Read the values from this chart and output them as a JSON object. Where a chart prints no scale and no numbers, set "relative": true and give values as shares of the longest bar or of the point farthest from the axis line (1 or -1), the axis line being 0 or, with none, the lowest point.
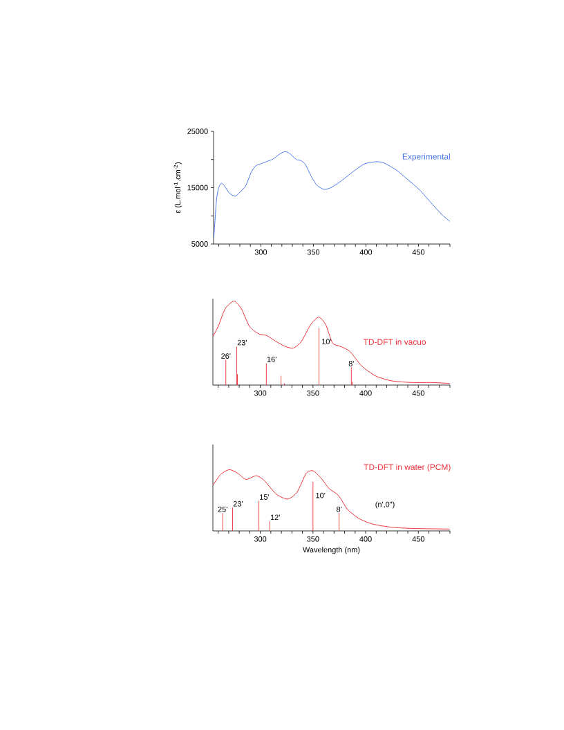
{
  "chart_data": [
    {
      "type": "line",
      "ylabel": "ε (L.mol$^{-1}$.cm$^{-2}$)",
      "xlim": [
        255,
        480
      ],
      "ylim": [
        5000,
        25000
      ],
      "xticks": [
        {
          "value": 260,
          "label": null
        },
        {
          "value": 270,
          "label": null
        },
        {
          "value": 280,
          "label": null
        },
        {
          "value": 290,
          "label": null
        },
        300,
        {
          "value": 310,
          "label": null
        },
        {
          "value": 320,
          "label": null
        },
        {
          "value": 330,
          "label": null
        },
        {
          "value": 340,
          "label": null
        },
        350,
        {
          "value": 360,
          "label": null
        },
        {
          "value": 370,
          "label": null
        },
        {
          "value": 380,
          "label": null
        },
        {
          "value": 390,
          "label": null
        },
        400,
        {
          "value": 410,
          "label": null
        },
        {
          "value": 420,
          "label": null
        },
        {
          "value": 430,
          "label": null
        },
        {
          "value": 440,
          "label": null
        },
        450,
        {
          "value": 460,
          "label": null
        },
        {
          "value": 470,
          "label": null
        },
        {
          "value": 480,
          "label": null
        }
      ],
      "yticks": [
        5000,
        {
          "value": 10000,
          "label": null
        },
        15000,
        {
          "value": 20000,
          "label": null
        },
        25000
      ],
      "series": [
        {
          "name": "Experimental",
          "color": "#4a76e8",
          "x": [
            255.3,
            257.7,
            259.9,
            262.5,
            265.8,
            270.2,
            275.7,
            280,
            285.5,
            291,
            295.4,
            300.9,
            306.4,
            311.8,
            317.3,
            322.8,
            327.2,
            333.8,
            338.2,
            342.5,
            348,
            353.5,
            360.1,
            366.7,
            376.5,
            387.5,
            398.5,
            409.4,
            417.1,
            429.2,
            440.1,
            451.1,
            462.1,
            473,
            480
          ],
          "values": [
            6200,
            12700,
            15000,
            15800,
            15200,
            14000,
            13500,
            14200,
            15300,
            17800,
            18900,
            19300,
            19700,
            20100,
            20900,
            21400,
            21100,
            20000,
            19800,
            19100,
            17000,
            15400,
            14700,
            15000,
            16200,
            17800,
            19200,
            19600,
            19400,
            18100,
            16400,
            14600,
            12300,
            10100,
            9000
          ]
        }
      ]
    },
    {
      "type": "line",
      "relative": true,
      "xlim": [
        255,
        480
      ],
      "xticks": [
        {
          "value": 260,
          "label": null
        },
        {
          "value": 270,
          "label": null
        },
        {
          "value": 280,
          "label": null
        },
        {
          "value": 290,
          "label": null
        },
        300,
        {
          "value": 310,
          "label": null
        },
        {
          "value": 320,
          "label": null
        },
        {
          "value": 330,
          "label": null
        },
        {
          "value": 340,
          "label": null
        },
        350,
        {
          "value": 360,
          "label": null
        },
        {
          "value": 370,
          "label": null
        },
        {
          "value": 380,
          "label": null
        },
        {
          "value": 390,
          "label": null
        },
        400,
        {
          "value": 410,
          "label": null
        },
        {
          "value": 420,
          "label": null
        },
        {
          "value": 430,
          "label": null
        },
        {
          "value": 440,
          "label": null
        },
        450,
        {
          "value": 460,
          "label": null
        },
        {
          "value": 470,
          "label": null
        },
        {
          "value": 480,
          "label": null
        }
      ],
      "series": [
        {
          "name": "TD-DFT in vacuo",
          "color": "#e8303a",
          "x": [
            255,
            260.1,
            266.7,
            275,
            282,
            289.7,
            298.5,
            306.1,
            314.9,
            323.7,
            331.4,
            339,
            347.8,
            355.5,
            362.1,
            368.6,
            376.3,
            385.1,
            396,
            409.2,
            424.6,
            444.3,
            461.8,
            479.8
          ],
          "values": [
            0.58,
            0.7,
            0.91,
            1.0,
            0.91,
            0.7,
            0.61,
            0.59,
            0.52,
            0.46,
            0.44,
            0.52,
            0.72,
            0.81,
            0.72,
            0.5,
            0.46,
            0.4,
            0.23,
            0.11,
            0.05,
            0.03,
            0.03,
            0.02
          ]
        },
        {
          "type": "bar",
          "color": "#e8303a",
          "x": [
            267.3,
            277.6,
            278.3,
            305.7,
            319.7,
            322.8,
            355.7,
            386.4,
            387.3
          ],
          "values": [
            0.3,
            0.46,
            0.13,
            0.26,
            0.11,
            0.02,
            0.68,
            0.21,
            0.04
          ]
        }
      ],
      "annotations": [
        {
          "text": "26'",
          "x": 267.3,
          "y": 0.3
        },
        {
          "text": "23'",
          "x": 277.6,
          "y": 0.46
        },
        {
          "text": "16'",
          "x": 305.7,
          "y": 0.26
        },
        {
          "text": "10'",
          "x": 355.7,
          "y": 0.68
        },
        {
          "text": "8'",
          "x": 386.4,
          "y": 0.21
        }
      ]
    },
    {
      "type": "line",
      "relative": true,
      "xlim": [
        255,
        480
      ],
      "xlabel": "Wavelength (nm)",
      "xticks": [
        {
          "value": 260,
          "label": null
        },
        {
          "value": 270,
          "label": null
        },
        {
          "value": 280,
          "label": null
        },
        {
          "value": 290,
          "label": null
        },
        300,
        {
          "value": 310,
          "label": null
        },
        {
          "value": 320,
          "label": null
        },
        {
          "value": 330,
          "label": null
        },
        {
          "value": 340,
          "label": null
        },
        350,
        {
          "value": 360,
          "label": null
        },
        {
          "value": 370,
          "label": null
        },
        {
          "value": 380,
          "label": null
        },
        {
          "value": 390,
          "label": null
        },
        400,
        {
          "value": 410,
          "label": null
        },
        {
          "value": 420,
          "label": null
        },
        {
          "value": 430,
          "label": null
        },
        {
          "value": 440,
          "label": null
        },
        450,
        {
          "value": 460,
          "label": null
        },
        {
          "value": 470,
          "label": null
        },
        {
          "value": 480,
          "label": null
        }
      ],
      "series": [
        {
          "name": "TD-DFT in water (PCM)",
          "color": "#e8303a",
          "x": [
            255.3,
            262.3,
            270.6,
            278.7,
            286.4,
            296.3,
            303.9,
            315.1,
            326,
            334.8,
            343.6,
            350.2,
            357.7,
            365.4,
            374.1,
            382.9,
            393.9,
            407,
            424.6,
            444.3,
            479.8
          ],
          "values": [
            0.75,
            0.92,
            1.0,
            0.94,
            0.84,
            0.9,
            0.82,
            0.6,
            0.52,
            0.63,
            0.94,
            0.98,
            0.86,
            0.69,
            0.58,
            0.35,
            0.2,
            0.11,
            0.06,
            0.04,
            0.03
          ]
        },
        {
          "type": "bar",
          "color": "#e8303a",
          "x": [
            264.3,
            273.7,
            298.7,
            309,
            350,
            374.8
          ],
          "values": [
            0.29,
            0.38,
            0.49,
            0.16,
            0.8,
            0.29
          ]
        }
      ],
      "annotations": [
        {
          "text": "25'",
          "x": 264.3,
          "y": 0.29
        },
        {
          "text": "23'",
          "x": 273.7,
          "y": 0.38
        },
        {
          "text": "15'",
          "x": 298.7,
          "y": 0.49
        },
        {
          "text": "12'",
          "x": 309,
          "y": 0.16
        },
        {
          "text": "10'",
          "x": 350,
          "y": 0.8
        },
        {
          "text": "8'",
          "x": 374.8,
          "y": 0.29
        },
        "(n',0\")"
      ]
    }
  ]
}
